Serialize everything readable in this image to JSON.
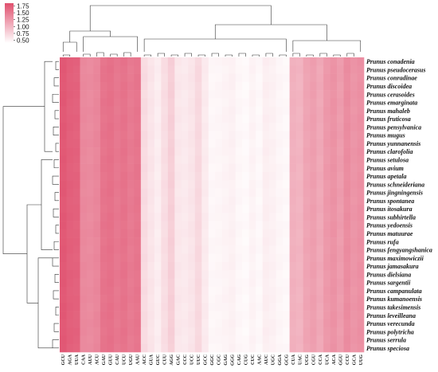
{
  "chart_data": {
    "type": "heatmap",
    "title": "",
    "xlabel": "",
    "ylabel": "",
    "colorbar": {
      "ticks": [
        "1.75",
        "1.50",
        "1.25",
        "1.00",
        "0.75",
        "0.50"
      ],
      "range": [
        0.4,
        1.85
      ],
      "color_low": "#ffffff",
      "color_high": "#e0506e"
    },
    "rows": [
      "Prunus conadenia",
      "Prunus pseudocerasus",
      "Prunus conradinae",
      "Prunus discoidea",
      "Prunus cerasoides",
      "Prunus emarginata",
      "Prunus mahaleb",
      "Prunus fruticosa",
      "Prunus pensylvanica",
      "Prunus mugus",
      "Prunus yunnanensis",
      "Prunus clarofolia",
      "Prunus setulosa",
      "Prunus avium",
      "Prunus apetala",
      "Prunus schneideriana",
      "Prunus jingningensis",
      "Prunus spontanea",
      "Prunus itosakura",
      "Prunus subhirtella",
      "Prunus yedoensis",
      "Prunus matuurae",
      "Prunus rufa",
      "Prunus fengyangshanica",
      "Prunus maximowiczii",
      "Prunus jamasakura",
      "Prunus dielsiana",
      "Prunus sargentii",
      "Prunus campanulata",
      "Prunus kumanoensis",
      "Prunus takesimensis",
      "Prunus leveilleana",
      "Prunus verecunda",
      "Prunus polytricha",
      "Prunus serrula",
      "Prunus speciosa"
    ],
    "columns": [
      "GCU",
      "AGA",
      "UUA",
      "CAA",
      "AUU",
      "ACU",
      "GAU",
      "GUU",
      "CAU",
      "UCU",
      "UGU",
      "AAU",
      "ACC",
      "GUA",
      "GUC",
      "CUU",
      "AGG",
      "GAC",
      "CCC",
      "UCC",
      "UUC",
      "GCC",
      "GGC",
      "CGC",
      "GAG",
      "GGG",
      "CAG",
      "CUG",
      "CUC",
      "AAC",
      "AUC",
      "UGC",
      "GGA",
      "GCG",
      "CUA",
      "UAC",
      "UCG",
      "CGU",
      "CCA",
      "UCA",
      "ACA",
      "GGU",
      "CCU",
      "GCA",
      "UUG"
    ],
    "column_base_values": [
      1.78,
      1.72,
      1.7,
      1.38,
      1.36,
      1.4,
      1.55,
      1.58,
      1.52,
      1.56,
      1.5,
      1.54,
      0.7,
      0.62,
      0.55,
      0.68,
      0.8,
      0.6,
      0.58,
      0.62,
      0.72,
      0.57,
      0.47,
      0.48,
      0.5,
      0.52,
      0.47,
      0.45,
      0.5,
      0.46,
      0.54,
      0.52,
      0.48,
      0.46,
      1.05,
      1.02,
      1.15,
      1.2,
      1.12,
      1.25,
      1.3,
      1.22,
      1.35,
      1.28,
      1.32
    ]
  }
}
